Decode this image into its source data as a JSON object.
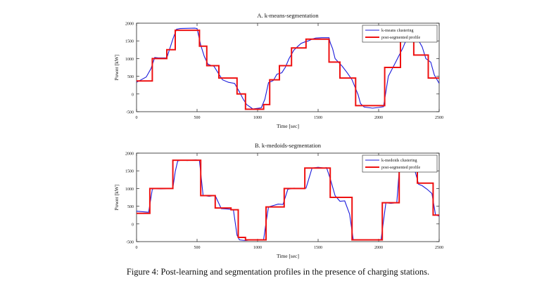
{
  "figure": {
    "caption": "Figure 4: Post-learning and segmentation profiles in the presence of charging stations."
  },
  "colors": {
    "clustering": "#1a1adb",
    "segmented": "#ee1111"
  },
  "chart_data": [
    {
      "type": "line",
      "title": "A. k-means-segmentation",
      "xlabel": "Time [sec]",
      "ylabel": "Power [kW]",
      "xlim": [
        0,
        2500
      ],
      "ylim": [
        -500,
        2000
      ],
      "xticks": [
        0,
        500,
        1000,
        1500,
        2000,
        2500
      ],
      "yticks": [
        -500,
        0,
        500,
        1000,
        1500,
        2000
      ],
      "legend_position": "top-right",
      "series": [
        {
          "name": "k-means clustering",
          "x": [
            0,
            80,
            120,
            150,
            180,
            250,
            300,
            330,
            360,
            480,
            500,
            530,
            560,
            590,
            640,
            680,
            710,
            760,
            810,
            850,
            880,
            910,
            960,
            1030,
            1060,
            1090,
            1130,
            1160,
            1200,
            1230,
            1260,
            1300,
            1330,
            1360,
            1390,
            1420,
            1450,
            1480,
            1530,
            1590,
            1600,
            1620,
            1640,
            1700,
            1740,
            1780,
            1830,
            1850,
            1880,
            1950,
            2000,
            2040,
            2080,
            2130,
            2200,
            2230,
            2260,
            2330,
            2360,
            2390,
            2430,
            2460,
            2500
          ],
          "y": [
            330,
            480,
            720,
            1030,
            1020,
            1020,
            1550,
            1830,
            1850,
            1860,
            1850,
            1380,
            1060,
            840,
            780,
            560,
            400,
            330,
            300,
            60,
            -140,
            -300,
            -420,
            -390,
            -150,
            320,
            380,
            560,
            600,
            760,
            1000,
            1240,
            1340,
            1430,
            1470,
            1500,
            1550,
            1580,
            1590,
            1590,
            1450,
            1280,
            1000,
            780,
            600,
            400,
            -20,
            -270,
            -370,
            -400,
            -380,
            -360,
            500,
            830,
            1300,
            1550,
            1570,
            1510,
            1330,
            1000,
            900,
            540,
            300
          ]
        },
        {
          "name": "post-segmented profile",
          "steps": [
            [
              0,
              370
            ],
            [
              130,
              1000
            ],
            [
              250,
              1250
            ],
            [
              320,
              1800
            ],
            [
              520,
              1350
            ],
            [
              580,
              800
            ],
            [
              680,
              450
            ],
            [
              830,
              0
            ],
            [
              900,
              -430
            ],
            [
              1050,
              -300
            ],
            [
              1100,
              400
            ],
            [
              1180,
              800
            ],
            [
              1280,
              1300
            ],
            [
              1400,
              1550
            ],
            [
              1590,
              900
            ],
            [
              1680,
              450
            ],
            [
              1810,
              -330
            ],
            [
              2050,
              750
            ],
            [
              2180,
              1550
            ],
            [
              2290,
              1100
            ],
            [
              2410,
              450
            ],
            [
              2500,
              450
            ]
          ]
        }
      ]
    },
    {
      "type": "line",
      "title": "B. k-medoids-segmentation",
      "xlabel": "Time [sec]",
      "ylabel": "Power [kW]",
      "xlim": [
        0,
        2500
      ],
      "ylim": [
        -500,
        2000
      ],
      "xticks": [
        0,
        500,
        1000,
        1500,
        2000,
        2500
      ],
      "yticks": [
        -500,
        0,
        500,
        1000,
        1500,
        2000
      ],
      "legend_position": "top-right",
      "series": [
        {
          "name": "k-medoids clustering",
          "x": [
            0,
            100,
            130,
            150,
            200,
            250,
            300,
            320,
            340,
            370,
            420,
            490,
            520,
            550,
            600,
            650,
            700,
            750,
            800,
            830,
            850,
            900,
            950,
            1000,
            1050,
            1070,
            1090,
            1130,
            1170,
            1210,
            1250,
            1300,
            1350,
            1400,
            1450,
            1500,
            1550,
            1570,
            1600,
            1640,
            1680,
            1720,
            1760,
            1790,
            1850,
            1950,
            2020,
            2060,
            2100,
            2150,
            2170,
            2200,
            2250,
            2300,
            2330,
            2360,
            2400,
            2440,
            2470,
            2500
          ],
          "y": [
            360,
            330,
            980,
            1000,
            990,
            1000,
            1010,
            1480,
            1780,
            1800,
            1790,
            1810,
            1790,
            800,
            780,
            800,
            430,
            420,
            400,
            -320,
            -450,
            -470,
            -450,
            -460,
            -440,
            40,
            480,
            520,
            560,
            550,
            980,
            1010,
            1000,
            1010,
            1580,
            1600,
            1580,
            1590,
            1280,
            800,
            640,
            650,
            280,
            -440,
            -460,
            -450,
            -450,
            600,
            580,
            600,
            1500,
            1490,
            1510,
            1500,
            1120,
            1080,
            980,
            860,
            260,
            220
          ]
        },
        {
          "name": "post-segmented profile",
          "steps": [
            [
              0,
              300
            ],
            [
              110,
              1000
            ],
            [
              300,
              1800
            ],
            [
              530,
              800
            ],
            [
              650,
              450
            ],
            [
              780,
              400
            ],
            [
              840,
              -380
            ],
            [
              900,
              -450
            ],
            [
              1070,
              480
            ],
            [
              1220,
              1000
            ],
            [
              1390,
              1580
            ],
            [
              1600,
              750
            ],
            [
              1780,
              -450
            ],
            [
              2030,
              600
            ],
            [
              2170,
              1500
            ],
            [
              2320,
              1150
            ],
            [
              2450,
              250
            ],
            [
              2500,
              250
            ]
          ]
        }
      ]
    }
  ]
}
